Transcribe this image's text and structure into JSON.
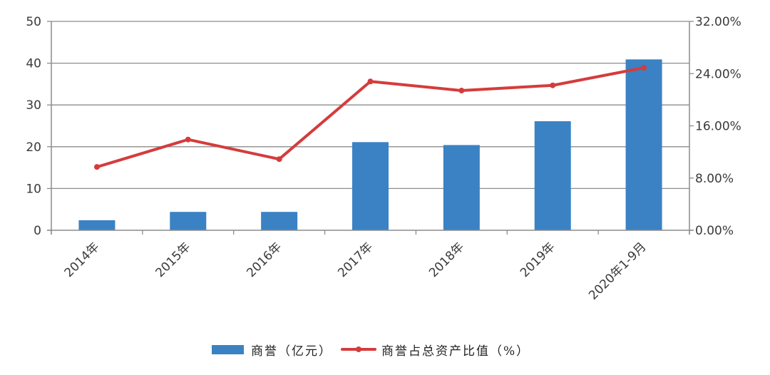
{
  "chart_data": {
    "type": "bar+line",
    "title": "",
    "categories": [
      "2014年",
      "2015年",
      "2016年",
      "2017年",
      "2018年",
      "2019年",
      "2020年1-9月"
    ],
    "series": [
      {
        "name": "商誉（亿元）",
        "type": "bar",
        "axis": "left",
        "color": "#3a82c4",
        "values": [
          2.4,
          4.4,
          4.4,
          21.1,
          20.4,
          26.1,
          40.9
        ]
      },
      {
        "name": "商誉占总资产比值（%）",
        "type": "line",
        "axis": "right",
        "color": "#d43c3c",
        "values": [
          9.7,
          13.9,
          10.9,
          22.8,
          21.4,
          22.2,
          24.9
        ]
      }
    ],
    "xlabel": "",
    "ylabel": "",
    "ylim": [
      0,
      50
    ],
    "y_ticks": [
      "0",
      "10",
      "20",
      "30",
      "40",
      "50"
    ],
    "y2lim": [
      0,
      32
    ],
    "y2_ticks": [
      "0.00%",
      "8.00%",
      "16.00%",
      "24.00%",
      "32.00%"
    ],
    "grid": true,
    "legend_position": "bottom"
  },
  "legend": {
    "items": [
      {
        "label": "商誉（亿元）",
        "color": "#3a82c4"
      },
      {
        "label": "商誉占总资产比值（%）",
        "color": "#d43c3c"
      }
    ]
  }
}
